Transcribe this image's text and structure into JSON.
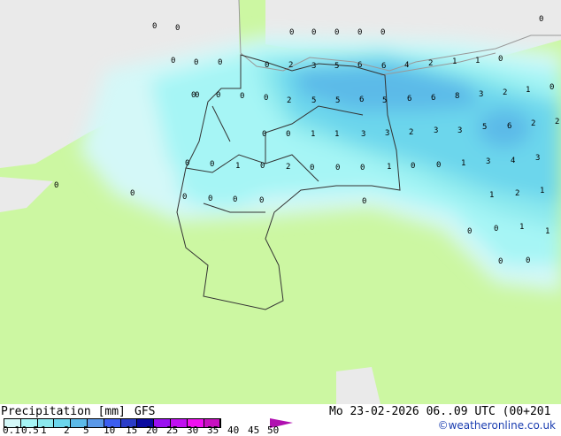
{
  "title": "Precipitation [mm]",
  "model": "GFS",
  "datetime": "Mo 23-02-2026 06..09 UTC (00+201",
  "copyright": "©weatheronline.co.uk",
  "colors": {
    "land": "#ccf7a2",
    "sea": "#eaeaea",
    "border": "#333333",
    "coast": "#999999"
  },
  "legend": {
    "ticks": [
      "0.1",
      "0.5",
      "1",
      "2",
      "5",
      "10",
      "15",
      "20",
      "25",
      "30",
      "35",
      "40",
      "45",
      "50"
    ],
    "colors": [
      "#d4f8f8",
      "#a6f5f5",
      "#8ce9ee",
      "#6cd6ec",
      "#5cbae8",
      "#5a98e8",
      "#3c5ef0",
      "#2a3cc8",
      "#0a0aa0",
      "#9a10f0",
      "#c010f0",
      "#f010f0",
      "#c810c0"
    ]
  },
  "grid_values": [
    "0",
    "0",
    "0",
    "0",
    "0",
    "0",
    "0",
    "0",
    "0",
    "0",
    "0",
    "0",
    "2",
    "3",
    "5",
    "6",
    "6",
    "4",
    "2",
    "1",
    "1",
    "0",
    "0",
    "0",
    "0",
    "0",
    "2",
    "5",
    "5",
    "6",
    "5",
    "6",
    "6",
    "8",
    "3",
    "2",
    "1",
    "0",
    "0",
    "0",
    "1",
    "1",
    "3",
    "3",
    "2",
    "3",
    "3",
    "5",
    "6",
    "2",
    "2",
    "0",
    "0",
    "1",
    "0",
    "2",
    "0",
    "0",
    "0",
    "1",
    "0",
    "0",
    "1",
    "3",
    "4",
    "3",
    "0",
    "0",
    "0",
    "0",
    "0",
    "1",
    "2",
    "1",
    "0",
    "0",
    "1",
    "1",
    "0",
    "0",
    "0",
    "0",
    "0"
  ]
}
